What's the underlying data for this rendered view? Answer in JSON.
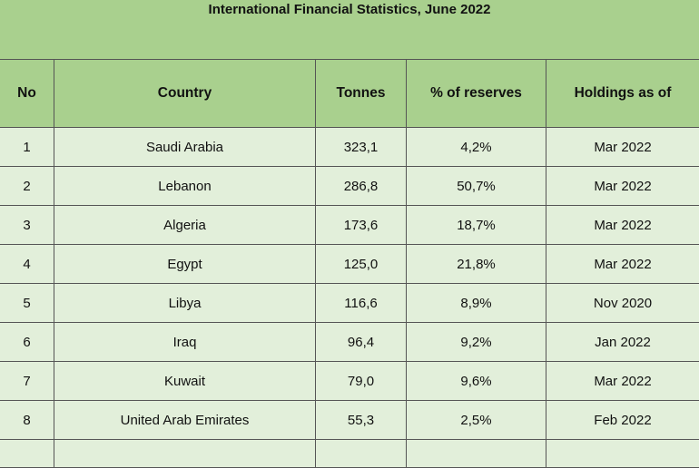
{
  "title": "International Financial Statistics, June 2022",
  "table": {
    "header": [
      "No",
      "Country",
      "Tonnes",
      "% of reserves",
      "Holdings as of"
    ],
    "rows": [
      [
        "1",
        "Saudi Arabia",
        "323,1",
        "4,2%",
        "Mar 2022"
      ],
      [
        "2",
        "Lebanon",
        "286,8",
        "50,7%",
        "Mar 2022"
      ],
      [
        "3",
        "Algeria",
        "173,6",
        "18,7%",
        "Mar 2022"
      ],
      [
        "4",
        "Egypt",
        "125,0",
        "21,8%",
        "Mar 2022"
      ],
      [
        "5",
        "Libya",
        "116,6",
        "8,9%",
        "Nov 2020"
      ],
      [
        "6",
        "Iraq",
        "96,4",
        "9,2%",
        "Jan 2022"
      ],
      [
        "7",
        "Kuwait",
        "79,0",
        "9,6%",
        "Mar 2022"
      ],
      [
        "8",
        "United Arab Emirates",
        "55,3",
        "2,5%",
        "Feb 2022"
      ]
    ]
  }
}
